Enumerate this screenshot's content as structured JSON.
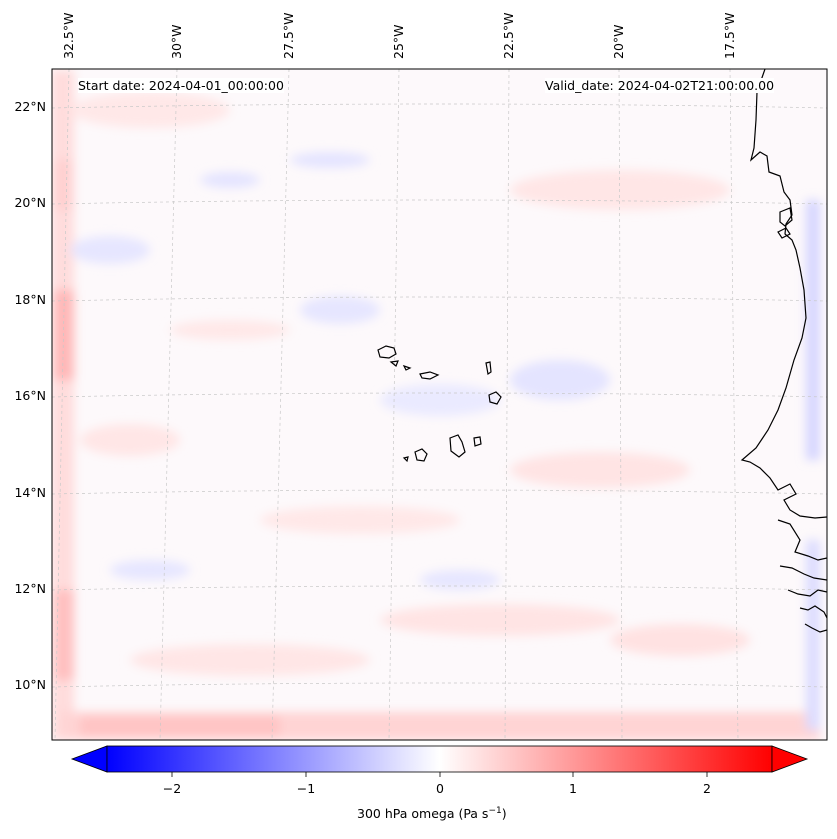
{
  "header": {
    "start_date": "Start date: 2024-04-01_00:00:00",
    "valid_date": "Valid_date: 2024-04-02T21:00:00.00"
  },
  "map": {
    "longitude_labels": [
      "32.5°W",
      "30°W",
      "27.5°W",
      "25°W",
      "22.5°W",
      "20°W",
      "17.5°W"
    ],
    "latitude_labels": [
      "22°N",
      "20°N",
      "18°N",
      "16°N",
      "14°N",
      "12°N",
      "10°N"
    ],
    "field_colors": {
      "negative": "#0000ff",
      "zero": "#ffffff",
      "positive": "#ff0000"
    },
    "coastline_color": "#000000",
    "gridlines": true
  },
  "colorbar": {
    "ticks": [
      "−2",
      "−1",
      "0",
      "1",
      "2"
    ],
    "tick_values": [
      -2,
      -1,
      0,
      1,
      2
    ],
    "range": [
      -2.6,
      2.6
    ],
    "label_main": "300 hPa omega (Pa s",
    "label_exp": "−1",
    "label_end": ")",
    "extend": "both"
  }
}
